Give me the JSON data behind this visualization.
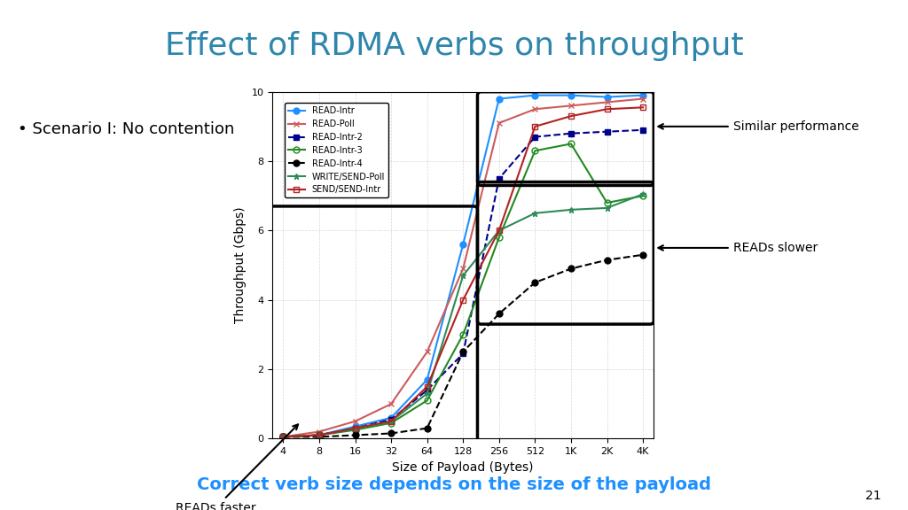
{
  "title": "Effect of RDMA verbs on throughput",
  "subtitle": "Correct verb size depends on the size of the payload",
  "bullet": "Scenario I: No contention",
  "slide_number": "21",
  "xlabel": "Size of Payload (Bytes)",
  "ylabel": "Throughput (Gbps)",
  "xtick_labels": [
    "4",
    "8",
    "16",
    "32",
    "64",
    "128",
    "256",
    "512",
    "1K",
    "2K",
    "4K"
  ],
  "ylim": [
    0,
    10
  ],
  "yticks": [
    0,
    2,
    4,
    6,
    8,
    10
  ],
  "series": {
    "READ-Intr": {
      "color": "#1E90FF",
      "marker": "o",
      "linestyle": "-",
      "fillstyle": "full",
      "values": [
        0.05,
        0.1,
        0.35,
        0.6,
        1.7,
        5.6,
        9.8,
        9.9,
        9.9,
        9.85,
        9.9
      ]
    },
    "READ-Poll": {
      "color": "#CD5C5C",
      "marker": "x",
      "linestyle": "-",
      "fillstyle": "full",
      "values": [
        0.05,
        0.2,
        0.5,
        1.0,
        2.5,
        4.9,
        9.1,
        9.5,
        9.6,
        9.7,
        9.8
      ]
    },
    "READ-Intr-2": {
      "color": "#00008B",
      "marker": "s",
      "linestyle": "--",
      "fillstyle": "full",
      "values": [
        0.05,
        0.1,
        0.3,
        0.55,
        1.4,
        2.45,
        7.5,
        8.7,
        8.8,
        8.85,
        8.9
      ]
    },
    "READ-Intr-3": {
      "color": "#228B22",
      "marker": "o",
      "linestyle": "-",
      "fillstyle": "none",
      "values": [
        0.05,
        0.1,
        0.25,
        0.45,
        1.1,
        3.0,
        5.8,
        8.3,
        8.5,
        6.8,
        7.0
      ]
    },
    "READ-Intr-4": {
      "color": "#000000",
      "marker": "o",
      "linestyle": "--",
      "fillstyle": "full",
      "values": [
        0.05,
        0.05,
        0.1,
        0.15,
        0.3,
        2.5,
        3.6,
        4.5,
        4.9,
        5.15,
        5.3
      ]
    },
    "WRITE/SEND-Poll": {
      "color": "#2E8B57",
      "marker": "*",
      "linestyle": "-",
      "fillstyle": "full",
      "values": [
        0.05,
        0.1,
        0.3,
        0.5,
        1.3,
        4.7,
        6.0,
        6.5,
        6.6,
        6.65,
        7.05
      ]
    },
    "SEND/SEND-Intr": {
      "color": "#B22222",
      "marker": "s",
      "linestyle": "-",
      "fillstyle": "none",
      "values": [
        0.05,
        0.1,
        0.3,
        0.5,
        1.5,
        4.0,
        6.0,
        9.0,
        9.3,
        9.5,
        9.55
      ]
    }
  },
  "annotation_faster": "READs faster",
  "annotation_similar": "Similar performance",
  "annotation_slower": "READs slower",
  "title_color": "#2E86AB",
  "subtitle_color": "#1E90FF",
  "bg_color": "#FFFFFF",
  "header_bg": "#E8E8E8",
  "footer_bg": "#E8E8E8"
}
